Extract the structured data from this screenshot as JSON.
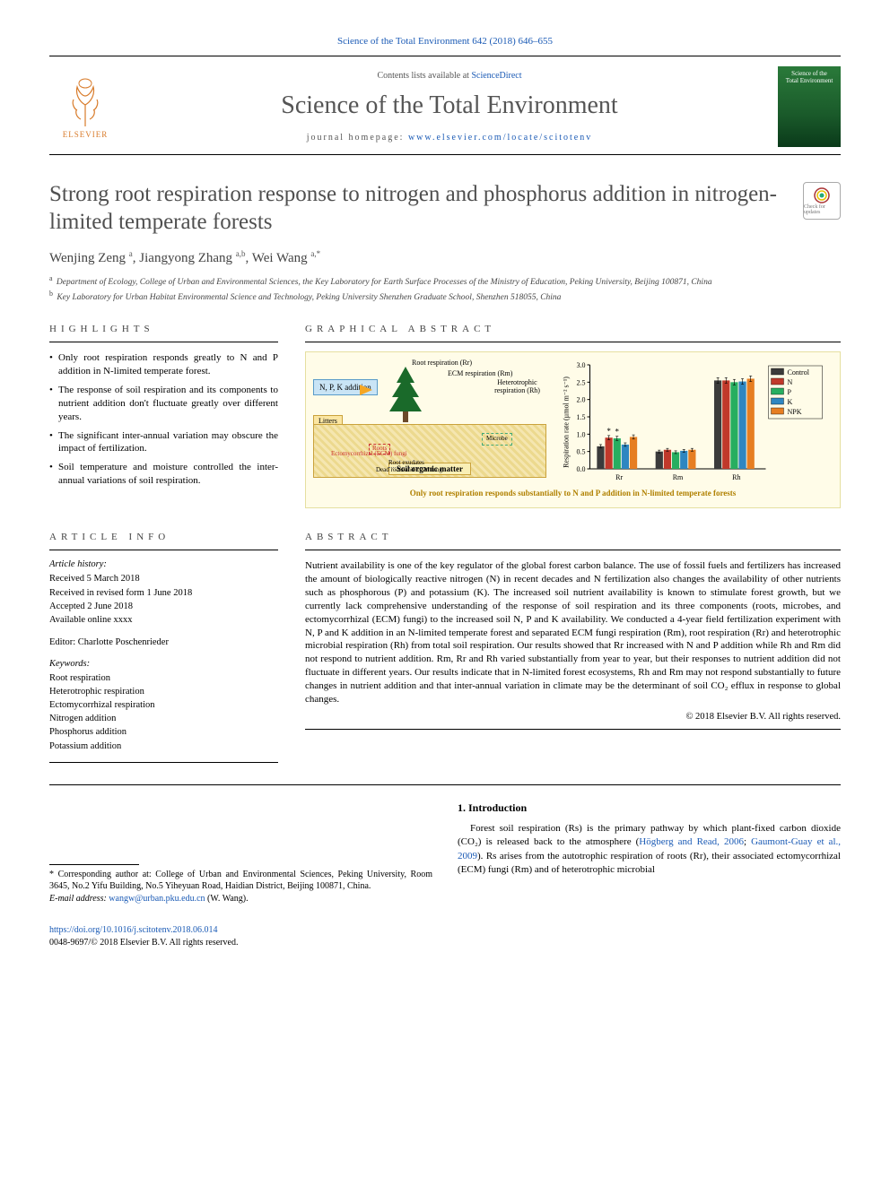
{
  "running_head": "Science of the Total Environment 642 (2018) 646–655",
  "masthead": {
    "contents_prefix": "Contents lists available at ",
    "contents_link": "ScienceDirect",
    "journal_title": "Science of the Total Environment",
    "home_prefix": "journal homepage: ",
    "home_link": "www.elsevier.com/locate/scitotenv",
    "publisher": "ELSEVIER",
    "cover_line1": "Science of the",
    "cover_line2": "Total Environment"
  },
  "crossmark": "Check for updates",
  "title": "Strong root respiration response to nitrogen and phosphorus addition in nitrogen-limited temperate forests",
  "authors_html": "Wenjing Zeng <sup>a</sup>, Jiangyong Zhang <sup>a,b</sup>, Wei Wang <sup>a,*</sup>",
  "affiliations": [
    {
      "sup": "a",
      "text": "Department of Ecology, College of Urban and Environmental Sciences, the Key Laboratory for Earth Surface Processes of the Ministry of Education, Peking University, Beijing 100871, China"
    },
    {
      "sup": "b",
      "text": "Key Laboratory for Urban Habitat Environmental Science and Technology, Peking University Shenzhen Graduate School, Shenzhen 518055, China"
    }
  ],
  "sections": {
    "highlights": "HIGHLIGHTS",
    "graphical": "GRAPHICAL ABSTRACT",
    "info": "ARTICLE INFO",
    "abstract": "ABSTRACT",
    "intro": "1. Introduction"
  },
  "highlights": [
    "Only root respiration responds greatly to N and P addition in N-limited temperate forest.",
    "The response of soil respiration and its components to nutrient addition don't fluctuate greatly over different years.",
    "The significant inter-annual variation may obscure the impact of fertilization.",
    "Soil temperature and moisture controlled the inter-annual variations of soil respiration."
  ],
  "graphical_abstract": {
    "npk_label": "N, P, K addition",
    "litters": "Litters",
    "rr_label": "Root respiration (Rr)",
    "rm_label": "ECM respiration (Rm)",
    "rh_label": "Heterotrophic respiration (Rh)",
    "microbe": "Microbe",
    "roots": "Roots",
    "ecm_fungi": "Ectomycorrhizal (ECM) fungi",
    "exudates": "Root exudates",
    "dead": "Dead roots and ECM fungi",
    "som": "Soil organic matter",
    "caption": "Only root respiration responds substantially to N and P addition in N-limited temperate forests",
    "chart": {
      "type": "bar",
      "ylabel": "Respiration rate (µmol m⁻² s⁻¹)",
      "ylim": [
        0,
        3.0
      ],
      "ytick_step": 0.5,
      "groups": [
        "Rr",
        "Rm",
        "Rh"
      ],
      "series": [
        {
          "name": "Control",
          "color": "#3b3b3b",
          "values": [
            0.65,
            0.5,
            2.55
          ],
          "err": [
            0.05,
            0.04,
            0.08
          ]
        },
        {
          "name": "N",
          "color": "#c0392b",
          "values": [
            0.9,
            0.55,
            2.55
          ],
          "err": [
            0.06,
            0.04,
            0.08
          ],
          "sig": [
            "*",
            null,
            null
          ]
        },
        {
          "name": "P",
          "color": "#27ae60",
          "values": [
            0.88,
            0.48,
            2.5
          ],
          "err": [
            0.06,
            0.04,
            0.08
          ],
          "sig": [
            "*",
            null,
            null
          ]
        },
        {
          "name": "K",
          "color": "#2e86c1",
          "values": [
            0.7,
            0.52,
            2.52
          ],
          "err": [
            0.05,
            0.04,
            0.08
          ]
        },
        {
          "name": "NPK",
          "color": "#e67e22",
          "values": [
            0.92,
            0.55,
            2.6
          ],
          "err": [
            0.06,
            0.04,
            0.08
          ]
        }
      ],
      "bar_width": 0.14,
      "background_color": "#fffce8",
      "axis_color": "#000000",
      "legend_position": "top-right",
      "font_size_labels": 8
    }
  },
  "article_info": {
    "history_head": "Article history:",
    "history": [
      "Received 5 March 2018",
      "Received in revised form 1 June 2018",
      "Accepted 2 June 2018",
      "Available online xxxx"
    ],
    "editor": "Editor: Charlotte Poschenrieder",
    "keywords_head": "Keywords:",
    "keywords": [
      "Root respiration",
      "Heterotrophic respiration",
      "Ectomycorrhizal respiration",
      "Nitrogen addition",
      "Phosphorus addition",
      "Potassium addition"
    ]
  },
  "abstract": "Nutrient availability is one of the key regulator of the global forest carbon balance. The use of fossil fuels and fertilizers has increased the amount of biologically reactive nitrogen (N) in recent decades and N fertilization also changes the availability of other nutrients such as phosphorous (P) and potassium (K). The increased soil nutrient availability is known to stimulate forest growth, but we currently lack comprehensive understanding of the response of soil respiration and its three components (roots, microbes, and ectomycorrhizal (ECM) fungi) to the increased soil N, P and K availability. We conducted a 4-year field fertilization experiment with N, P and K addition in an N-limited temperate forest and separated ECM fungi respiration (Rm), root respiration (Rr) and heterotrophic microbial respiration (Rh) from total soil respiration. Our results showed that Rr increased with N and P addition while Rh and Rm did not respond to nutrient addition. Rm, Rr and Rh varied substantially from year to year, but their responses to nutrient addition did not fluctuate in different years. Our results indicate that in N-limited forest ecosystems, Rh and Rm may not respond substantially to future changes in nutrient addition and that inter-annual variation in climate may be the determinant of soil CO₂ efflux in response to global changes.",
  "copyright": "© 2018 Elsevier B.V. All rights reserved.",
  "footnote": {
    "corr": "* Corresponding author at: College of Urban and Environmental Sciences, Peking University, Room 3645, No.2 Yifu Building, No.5 Yiheyuan Road, Haidian District, Beijing 100871, China.",
    "email_label": "E-mail address:",
    "email": "wangw@urban.pku.edu.cn",
    "email_suffix": "(W. Wang)."
  },
  "intro": {
    "p1_a": "Forest soil respiration (Rs) is the primary pathway by which plant-fixed carbon dioxide (CO₂) is released back to the atmosphere (",
    "ref1": "Högberg and Read, 2006",
    "sep": "; ",
    "ref2": "Gaumont-Guay et al., 2009",
    "p1_b": "). Rs arises from the autotrophic respiration of roots (Rr), their associated ectomycorrhizal (ECM) fungi (Rm) and of heterotrophic microbial"
  },
  "footer": {
    "doi": "https://doi.org/10.1016/j.scitotenv.2018.06.014",
    "issn": "0048-9697/© 2018 Elsevier B.V. All rights reserved."
  },
  "colors": {
    "link": "#1a5ab5",
    "publisher_orange": "#d87b2a",
    "ga_bg": "#fffce8",
    "ga_border": "#e5dfa0"
  }
}
